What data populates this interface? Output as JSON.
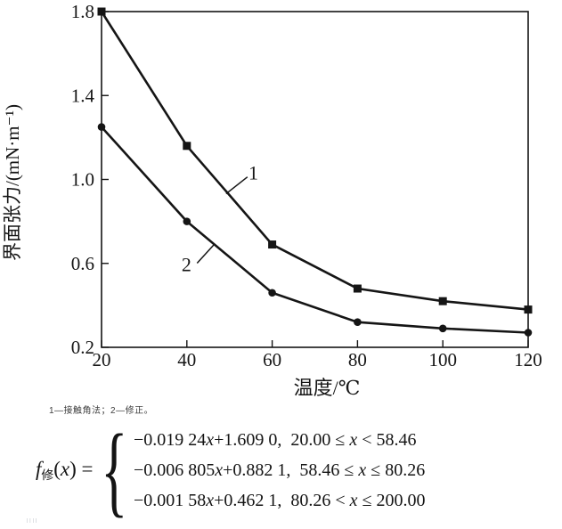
{
  "figure": {
    "caption": "1—接触角法；2—修正。",
    "footer_mark": "||||"
  },
  "chart_data": {
    "type": "line",
    "title": "",
    "xlabel": "温度/℃",
    "ylabel": "界面张力/(mN·m⁻¹)",
    "xlim": [
      20,
      120
    ],
    "ylim": [
      0.2,
      1.8
    ],
    "x_ticks": [
      20,
      40,
      60,
      80,
      100,
      120
    ],
    "y_ticks": [
      0.2,
      0.6,
      1.0,
      1.4,
      1.8
    ],
    "grid": false,
    "legend_position": "none",
    "line_color": "#151515",
    "x": [
      20,
      40,
      60,
      80,
      100,
      120
    ],
    "series": [
      {
        "name": "1 接触角法",
        "marker": "square",
        "values": [
          1.8,
          1.16,
          0.69,
          0.48,
          0.42,
          0.38
        ]
      },
      {
        "name": "2 修正",
        "marker": "circle",
        "values": [
          1.25,
          0.8,
          0.46,
          0.32,
          0.29,
          0.27
        ]
      }
    ],
    "annotations": [
      {
        "text": "1",
        "text_x": 55.6,
        "text_y": 1.035,
        "line": [
          [
            49.2,
            0.932
          ],
          [
            54.2,
            1.012
          ]
        ]
      },
      {
        "text": "2",
        "text_x": 39.9,
        "text_y": 0.597,
        "line": [
          [
            42.4,
            0.601
          ],
          [
            46.3,
            0.688
          ]
        ]
      }
    ]
  },
  "formula": {
    "brace": "{",
    "lhs": [
      {
        "t": "f",
        "style": "italic"
      },
      {
        "t": "修",
        "style": "sub"
      },
      {
        "t": "("
      },
      {
        "t": "x",
        "style": "italic"
      },
      {
        "t": ") = "
      }
    ],
    "rows": [
      [
        {
          "t": "−0.019 24"
        },
        {
          "t": "x",
          "style": "italic"
        },
        {
          "t": "+1.609 0,  20.00 ≤ "
        },
        {
          "t": "x",
          "style": "italic"
        },
        {
          "t": " < 58.46"
        }
      ],
      [
        {
          "t": "−0.006 805"
        },
        {
          "t": "x",
          "style": "italic"
        },
        {
          "t": "+0.882 1,  58.46 ≤ "
        },
        {
          "t": "x",
          "style": "italic"
        },
        {
          "t": " ≤ 80.26"
        }
      ],
      [
        {
          "t": "−0.001 58"
        },
        {
          "t": "x",
          "style": "italic"
        },
        {
          "t": "+0.462 1,  80.26 < "
        },
        {
          "t": "x",
          "style": "italic"
        },
        {
          "t": " ≤ 200.00"
        }
      ]
    ]
  }
}
